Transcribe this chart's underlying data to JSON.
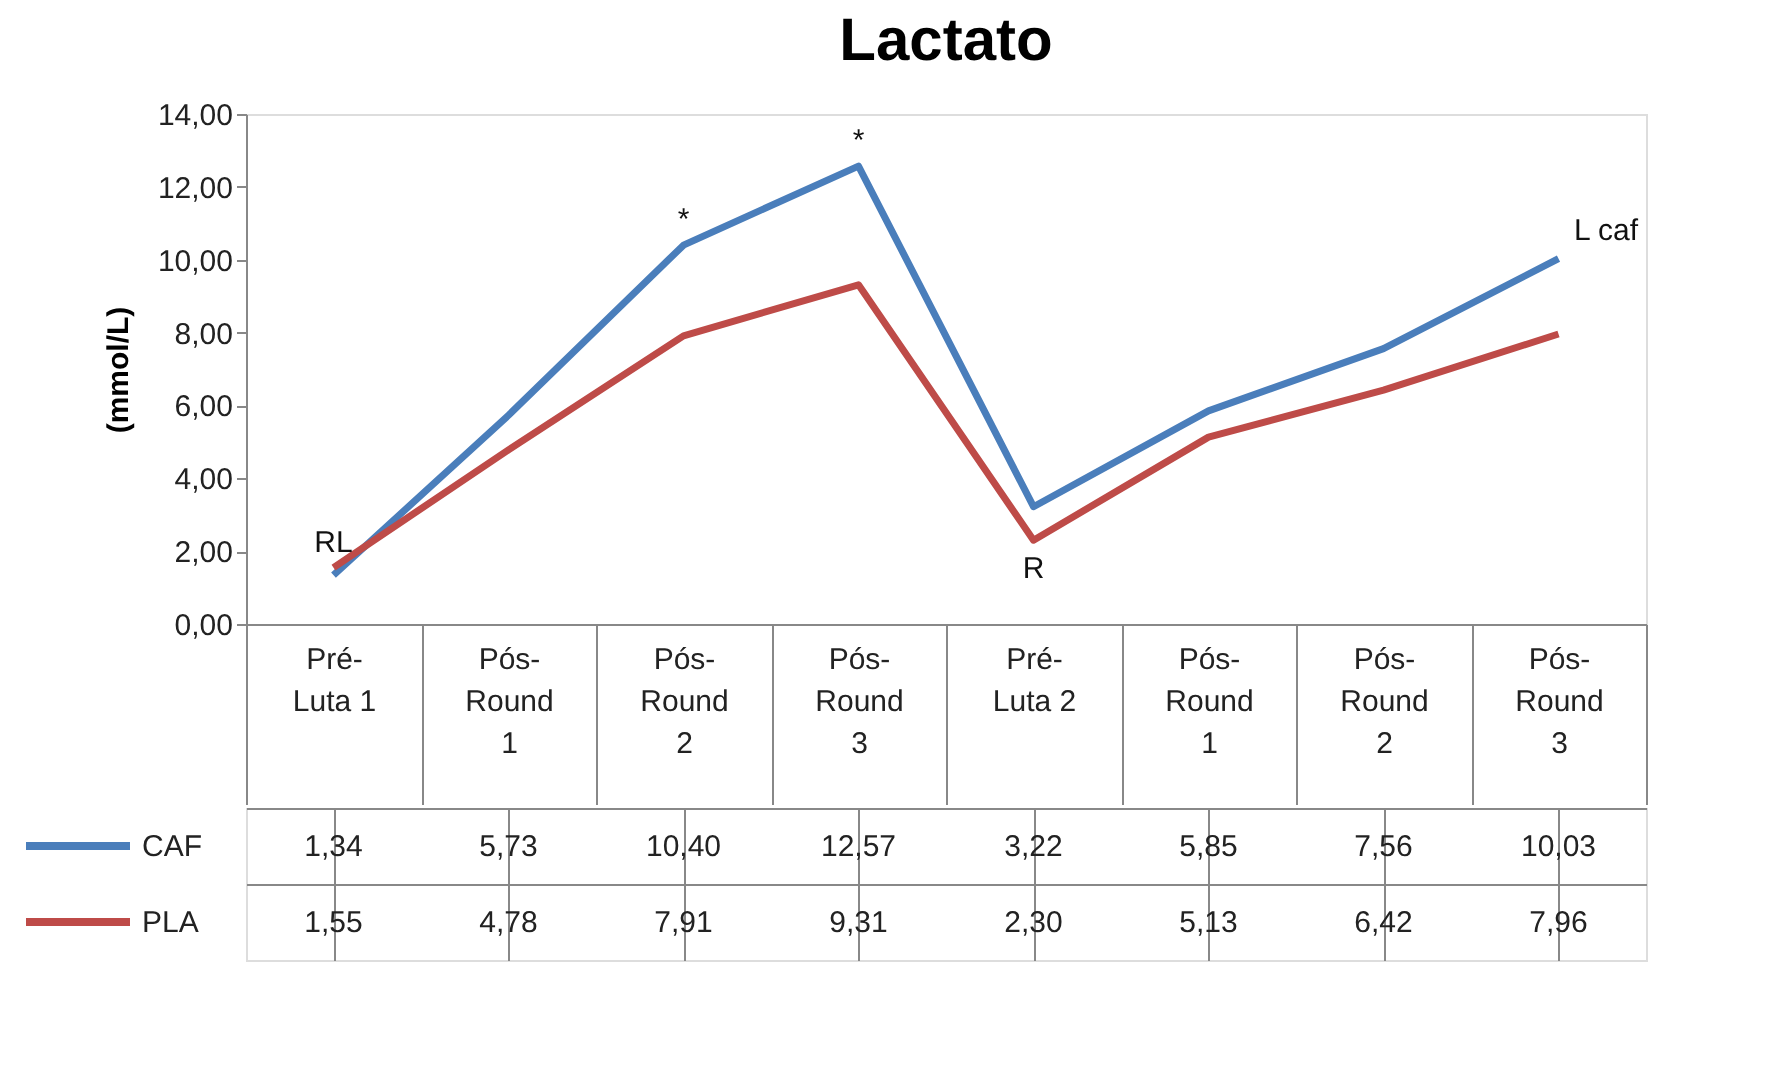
{
  "chart_data": {
    "type": "line",
    "title": "Lactato",
    "ylabel": "(mmol/L)",
    "categories": [
      "Pré-Luta 1",
      "Pós-Round 1",
      "Pós-Round 2",
      "Pós-Round 3",
      "Pré-Luta 2",
      "Pós-Round 1",
      "Pós-Round 2",
      "Pós-Round 3"
    ],
    "series": [
      {
        "name": "CAF",
        "color": "#4a7ebb",
        "values": [
          1.34,
          5.73,
          10.4,
          12.57,
          3.22,
          5.85,
          7.56,
          10.03
        ]
      },
      {
        "name": "PLA",
        "color": "#be4b48",
        "values": [
          1.55,
          4.78,
          7.91,
          9.31,
          2.3,
          5.13,
          6.42,
          7.96
        ]
      }
    ],
    "ylim": [
      0,
      14
    ],
    "yticks": [
      {
        "value": 0,
        "label": "0,00"
      },
      {
        "value": 2,
        "label": "2,00"
      },
      {
        "value": 4,
        "label": "4,00"
      },
      {
        "value": 6,
        "label": "6,00"
      },
      {
        "value": 8,
        "label": "8,00"
      },
      {
        "value": 10,
        "label": "10,00"
      },
      {
        "value": 12,
        "label": "12,00"
      },
      {
        "value": 14,
        "label": "14,00"
      }
    ],
    "value_labels": [
      [
        "1,34",
        "5,73",
        "10,40",
        "12,57",
        "3,22",
        "5,85",
        "7,56",
        "10,03"
      ],
      [
        "1,55",
        "4,78",
        "7,91",
        "9,31",
        "2,30",
        "5,13",
        "6,42",
        "7,96"
      ]
    ],
    "annotations": [
      {
        "text": "RL",
        "x": "Pré-Luta 1",
        "y": 1.55
      },
      {
        "text": "*",
        "x": "Pós-Round 2",
        "y": 10.4
      },
      {
        "text": "*",
        "x": "Pós-Round 3",
        "y": 12.57
      },
      {
        "text": "R",
        "x": "Pré-Luta 2",
        "y": 2.3
      },
      "L caf"
    ],
    "grid": false,
    "legend": "bottom",
    "marker": "none",
    "line_style": "solid"
  }
}
